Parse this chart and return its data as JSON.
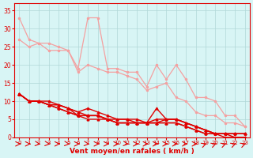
{
  "x": [
    0,
    1,
    2,
    3,
    4,
    5,
    6,
    7,
    8,
    9,
    10,
    11,
    12,
    13,
    14,
    15,
    16,
    17,
    18,
    19,
    20,
    21,
    22,
    23
  ],
  "lines_pink": [
    [
      33,
      27,
      26,
      26,
      25,
      24,
      19,
      33,
      33,
      19,
      19,
      18,
      18,
      14,
      20,
      16,
      20,
      16,
      11,
      11,
      10,
      6,
      6,
      3
    ],
    [
      27,
      25,
      26,
      24,
      24,
      24,
      18,
      20,
      19,
      18,
      18,
      17,
      16,
      13,
      14,
      15,
      11,
      10,
      7,
      6,
      6,
      4,
      4,
      3
    ]
  ],
  "lines_red": [
    [
      12,
      10,
      10,
      10,
      9,
      8,
      7,
      8,
      7,
      6,
      5,
      5,
      5,
      4,
      8,
      5,
      5,
      4,
      3,
      2,
      1,
      1,
      1,
      1
    ],
    [
      12,
      10,
      10,
      9,
      9,
      8,
      7,
      6,
      6,
      5,
      5,
      5,
      4,
      4,
      5,
      5,
      5,
      4,
      3,
      2,
      1,
      1,
      1,
      1
    ],
    [
      12,
      10,
      10,
      9,
      9,
      8,
      6,
      6,
      6,
      5,
      4,
      4,
      4,
      4,
      4,
      5,
      5,
      4,
      3,
      2,
      1,
      1,
      1,
      1
    ],
    [
      12,
      10,
      10,
      9,
      8,
      7,
      6,
      6,
      6,
      5,
      4,
      4,
      4,
      4,
      4,
      4,
      4,
      3,
      2,
      1,
      1,
      1,
      0,
      0
    ],
    [
      12,
      10,
      10,
      9,
      8,
      7,
      6,
      5,
      5,
      5,
      4,
      4,
      4,
      4,
      4,
      4,
      4,
      3,
      2,
      1,
      1,
      0,
      0,
      0
    ]
  ],
  "arrow_row": [
    0,
    0,
    0,
    0,
    0,
    0,
    0,
    0,
    0,
    0,
    0,
    0,
    0,
    0,
    0,
    0,
    0,
    0,
    0,
    0,
    0,
    0,
    0,
    0
  ],
  "pink_color": "#f4a0a0",
  "red_color": "#e00000",
  "bg_color": "#d8f5f5",
  "grid_color": "#b0d8d8",
  "axis_color": "#e00000",
  "xlabel": "Vent moyen/en rafales ( km/h )",
  "ylabel": "",
  "ylim": [
    0,
    37
  ],
  "xlim": [
    -0.5,
    23.5
  ],
  "yticks": [
    0,
    5,
    10,
    15,
    20,
    25,
    30,
    35
  ],
  "xticks": [
    0,
    1,
    2,
    3,
    4,
    5,
    6,
    7,
    8,
    9,
    10,
    11,
    12,
    13,
    14,
    15,
    16,
    17,
    18,
    19,
    20,
    21,
    22,
    23
  ]
}
